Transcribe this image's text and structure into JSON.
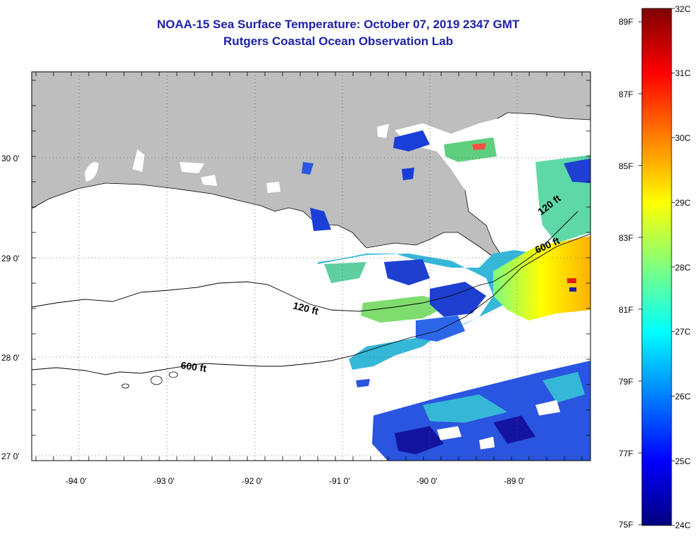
{
  "title": {
    "line1": "NOAA-15 Sea Surface Temperature:  October 07, 2019 2347 GMT",
    "line2": "Rutgers Coastal Ocean Observation Lab"
  },
  "map": {
    "lon_range": [
      -94.55,
      -88.25
    ],
    "lat_range": [
      26.95,
      30.85
    ],
    "lat_labels": [
      {
        "value": 30,
        "text": "30 0'"
      },
      {
        "value": 29,
        "text": "29 0'"
      },
      {
        "value": 28,
        "text": "28 0'"
      },
      {
        "value": 27,
        "text": "27 0'"
      }
    ],
    "lon_labels": [
      {
        "value": -94,
        "text": "-94 0'"
      },
      {
        "value": -93,
        "text": "-93 0'"
      },
      {
        "value": -92,
        "text": "-92 0'"
      },
      {
        "value": -91,
        "text": "-91 0'"
      },
      {
        "value": -90,
        "text": "-90 0'"
      },
      {
        "value": -89,
        "text": "-89 0'"
      }
    ],
    "contour_labels": [
      {
        "text": "120 ft"
      },
      {
        "text": "600 ft"
      },
      {
        "text": "600 ft"
      },
      {
        "text": "120 ft"
      }
    ],
    "colors": {
      "land": "#bebebe",
      "no_data": "#ffffff",
      "frame": "#000000"
    }
  },
  "colorbar": {
    "fahrenheit_labels": [
      "89F",
      "87F",
      "85F",
      "83F",
      "81F",
      "79F",
      "77F",
      "75F"
    ],
    "celsius_labels": [
      "32C",
      "31C",
      "30C",
      "29C",
      "28C",
      "27C",
      "26C",
      "25C",
      "24C"
    ],
    "range_c": [
      24,
      32
    ],
    "stops": [
      "#00007f",
      "#0000ff",
      "#007fff",
      "#00ffff",
      "#7fff7f",
      "#ffff00",
      "#ff7f00",
      "#ff0000",
      "#7f0000"
    ]
  }
}
